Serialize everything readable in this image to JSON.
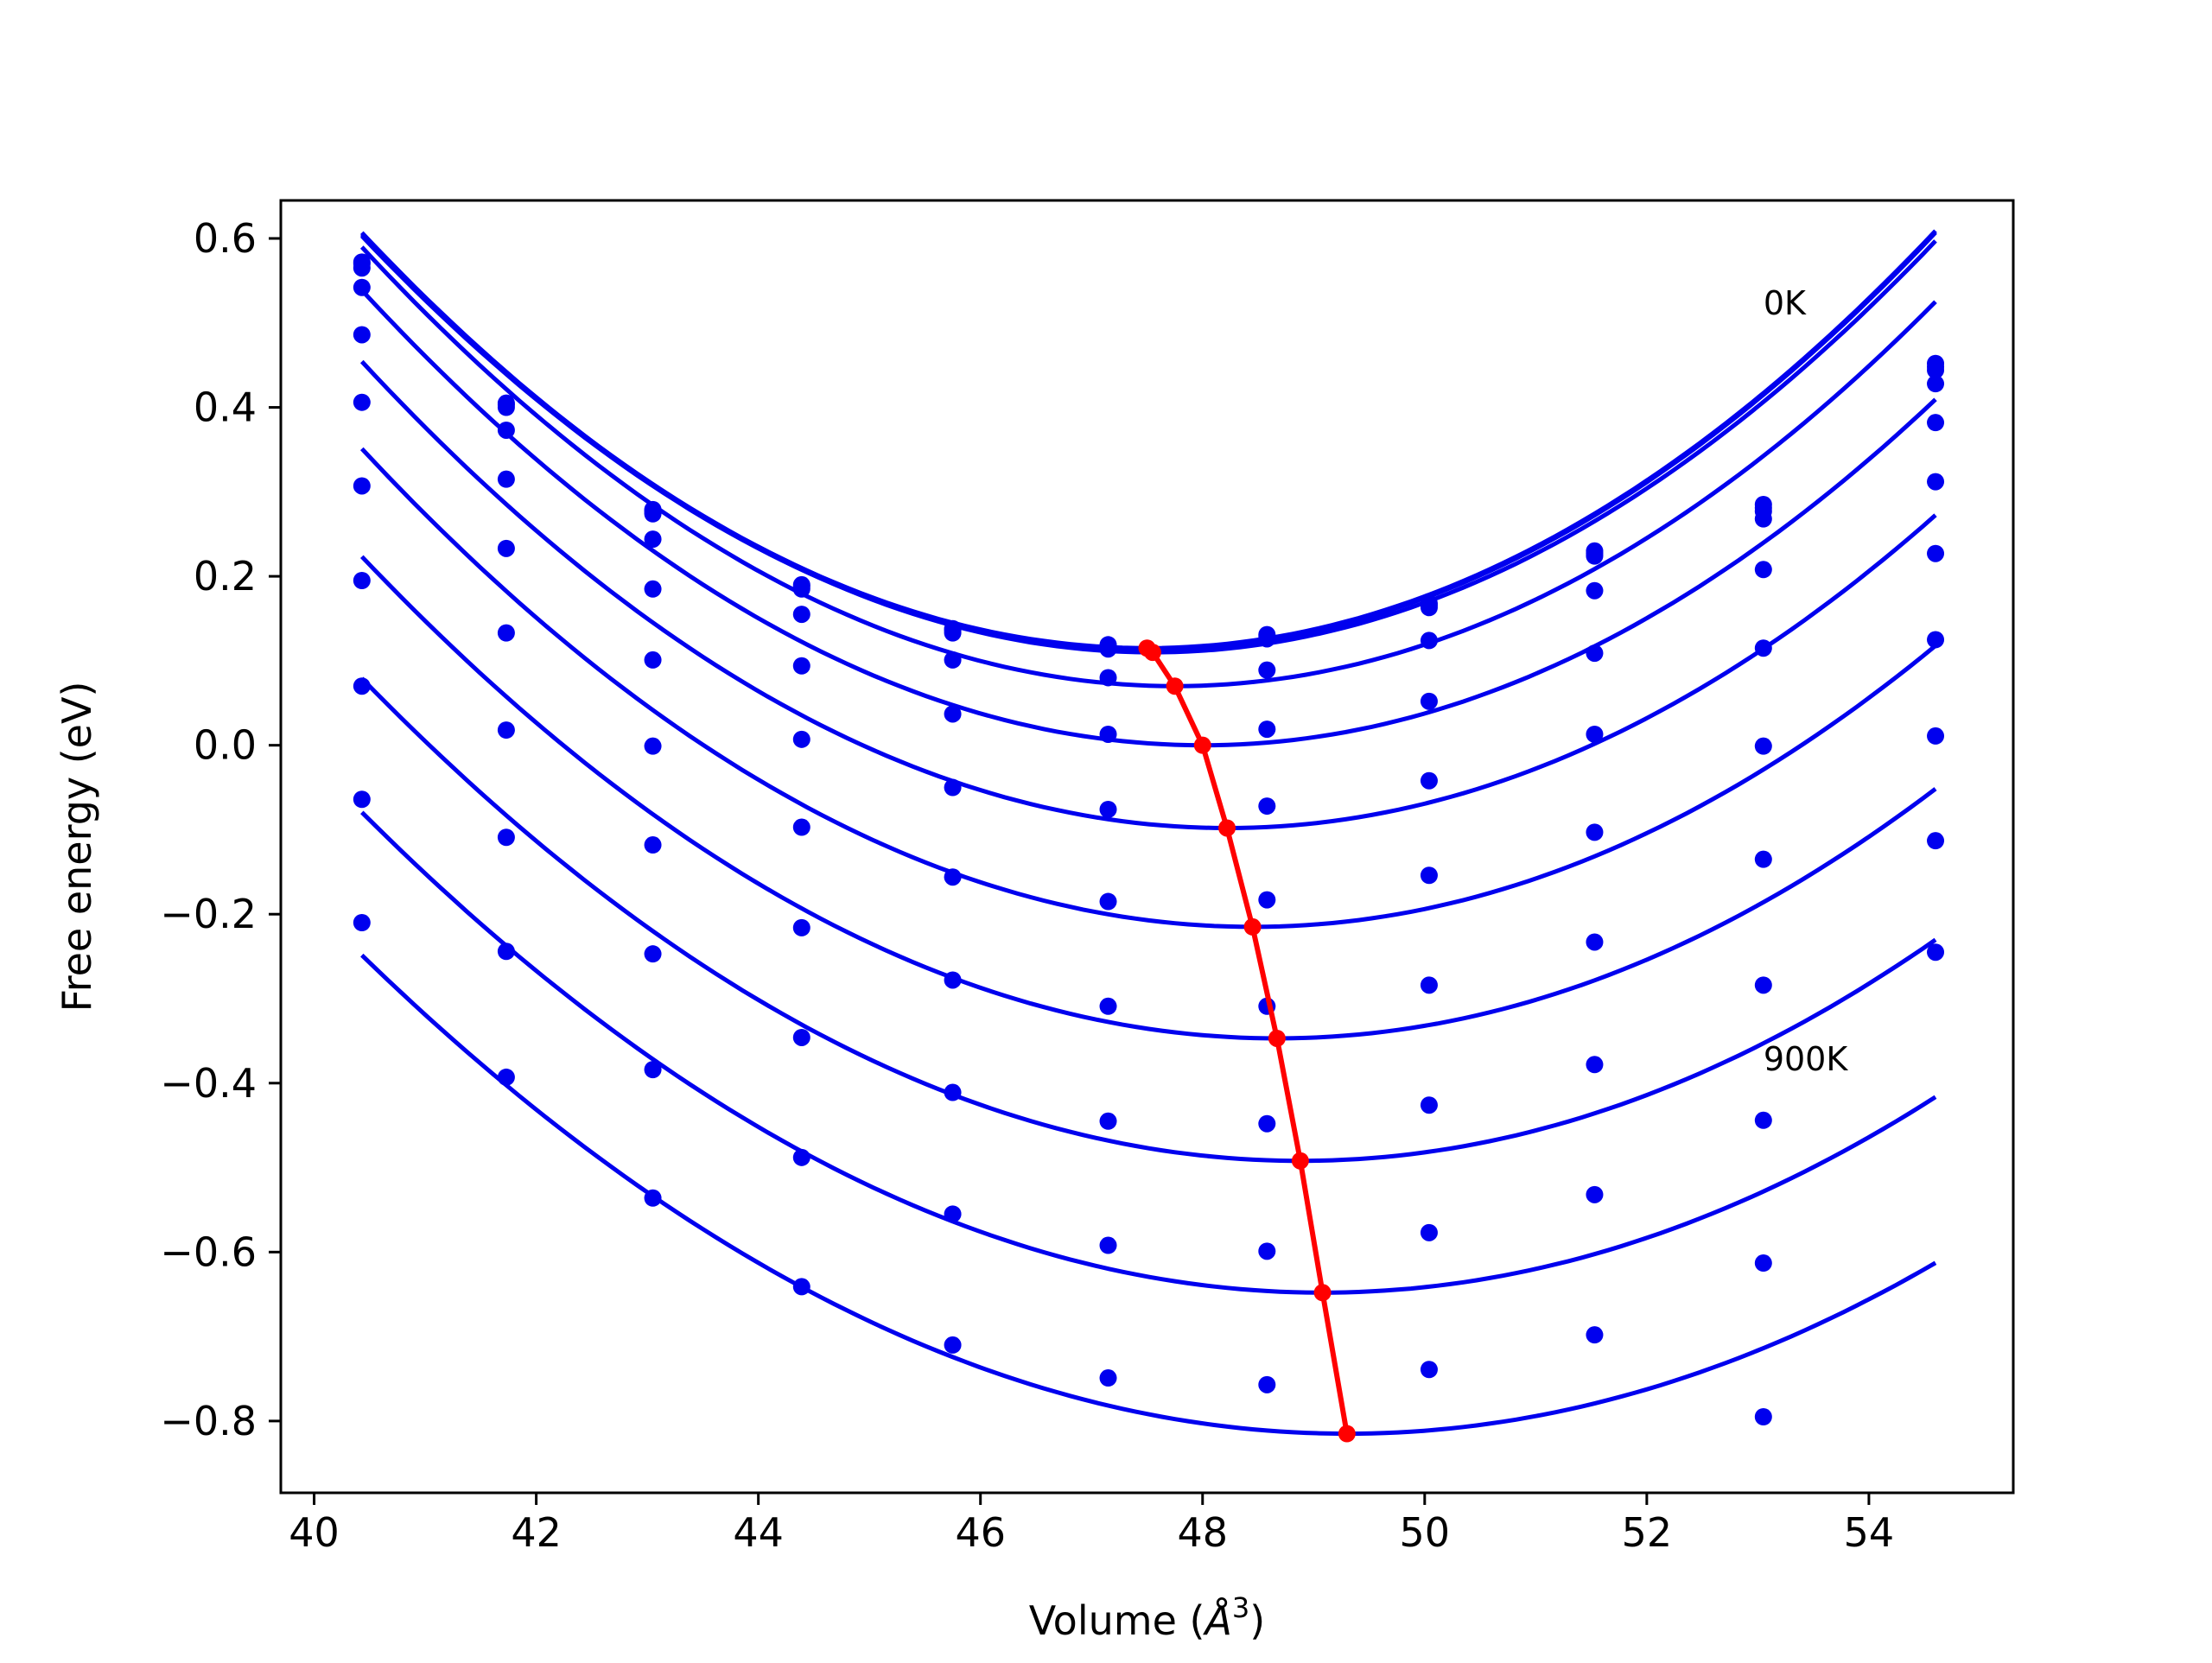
{
  "chart_data": {
    "type": "scatter",
    "xlabel": "Volume (",
    "xlabel_unit_base": "Å",
    "xlabel_unit_exp": "3",
    "xlabel_close": ")",
    "ylabel": "Free energy (eV)",
    "xlim": [
      39.7,
      55.3
    ],
    "ylim": [
      -0.885,
      0.645
    ],
    "xticks": [
      40,
      42,
      44,
      46,
      48,
      50,
      52,
      54
    ],
    "yticks": [
      0.6,
      0.4,
      0.2,
      0.0,
      -0.2,
      -0.4,
      -0.6,
      -0.8
    ],
    "ytick_labels": [
      "0.6",
      "0.4",
      "0.2",
      "0.0",
      "−0.2",
      "−0.4",
      "−0.6",
      "−0.8"
    ],
    "grid": false,
    "annotations": [
      {
        "text": "0K",
        "x": 53.05,
        "y": 0.51
      },
      {
        "text": "900K",
        "x": 53.05,
        "y": -0.385
      }
    ],
    "volumes": [
      40.43,
      41.73,
      43.05,
      44.39,
      45.75,
      47.15,
      48.58,
      50.04,
      51.53,
      53.05,
      54.6
    ],
    "fit_range": [
      40.43,
      54.6
    ],
    "series_color": "#0000ee",
    "min_line_color": "#ff0000",
    "series": [
      {
        "values": [
          0.572,
          0.405,
          0.279,
          0.19,
          0.138,
          0.119,
          0.131,
          0.168,
          0.23,
          0.285,
          0.452
        ],
        "min": {
          "x": 47.5,
          "y": 0.115
        },
        "a": 0.0098
      },
      {
        "values": [
          0.57,
          0.403,
          0.277,
          0.188,
          0.136,
          0.117,
          0.129,
          0.166,
          0.227,
          0.281,
          0.448
        ],
        "min": {
          "x": 47.5,
          "y": 0.113
        },
        "a": 0.0098
      },
      {
        "values": [
          0.565,
          0.4,
          0.274,
          0.185,
          0.133,
          0.114,
          0.126,
          0.163,
          0.224,
          0.277,
          0.444
        ],
        "min": {
          "x": 47.55,
          "y": 0.11
        },
        "a": 0.0098
      },
      {
        "values": [
          0.542,
          0.373,
          0.244,
          0.155,
          0.101,
          0.08,
          0.089,
          0.124,
          0.183,
          0.268,
          0.428
        ],
        "min": {
          "x": 47.75,
          "y": 0.07
        },
        "a": 0.0097
      },
      {
        "values": [
          0.486,
          0.315,
          0.185,
          0.094,
          0.037,
          0.013,
          0.019,
          0.052,
          0.109,
          0.208,
          0.382
        ],
        "min": {
          "x": 48.0,
          "y": 0.0
        },
        "a": 0.0094
      },
      {
        "values": [
          0.406,
          0.233,
          0.101,
          0.007,
          -0.05,
          -0.076,
          -0.072,
          -0.042,
          0.013,
          0.115,
          0.312
        ],
        "min": {
          "x": 48.22,
          "y": -0.098
        },
        "a": 0.0091
      },
      {
        "values": [
          0.307,
          0.133,
          -0.001,
          -0.097,
          -0.156,
          -0.185,
          -0.183,
          -0.154,
          -0.103,
          -0.001,
          0.227
        ],
        "min": {
          "x": 48.45,
          "y": -0.215
        },
        "a": 0.0088
      },
      {
        "values": [
          0.195,
          0.018,
          -0.118,
          -0.216,
          -0.278,
          -0.309,
          -0.309,
          -0.284,
          -0.233,
          -0.135,
          0.125
        ],
        "min": {
          "x": 48.67,
          "y": -0.347
        },
        "a": 0.0084
      },
      {
        "values": [
          0.07,
          -0.109,
          -0.247,
          -0.346,
          -0.411,
          -0.445,
          -0.448,
          -0.426,
          -0.378,
          -0.284,
          0.011
        ],
        "min": {
          "x": 48.88,
          "y": -0.492
        },
        "a": 0.008
      },
      {
        "values": [
          -0.064,
          -0.244,
          -0.384,
          -0.488,
          -0.555,
          -0.592,
          -0.599,
          -0.577,
          -0.532,
          -0.444,
          -0.113
        ],
        "min": {
          "x": 49.08,
          "y": -0.648
        },
        "a": 0.0076
      },
      {
        "values": [
          -0.21,
          -0.393,
          -0.536,
          -0.641,
          -0.71,
          -0.749,
          -0.757,
          -0.739,
          -0.698,
          -0.613,
          -0.245
        ],
        "min": {
          "x": 49.3,
          "y": -0.815
        },
        "a": 0.0072
      }
    ],
    "equilibrium_curve": {
      "x": [
        47.5,
        47.55,
        47.75,
        48.0,
        48.22,
        48.45,
        48.67,
        48.88,
        49.08,
        49.3
      ],
      "y": [
        0.115,
        0.11,
        0.07,
        0.0,
        -0.098,
        -0.215,
        -0.347,
        -0.492,
        -0.648,
        -0.815
      ]
    },
    "extra_points": [
      {
        "x": 53.05,
        "y": -0.795
      }
    ]
  }
}
